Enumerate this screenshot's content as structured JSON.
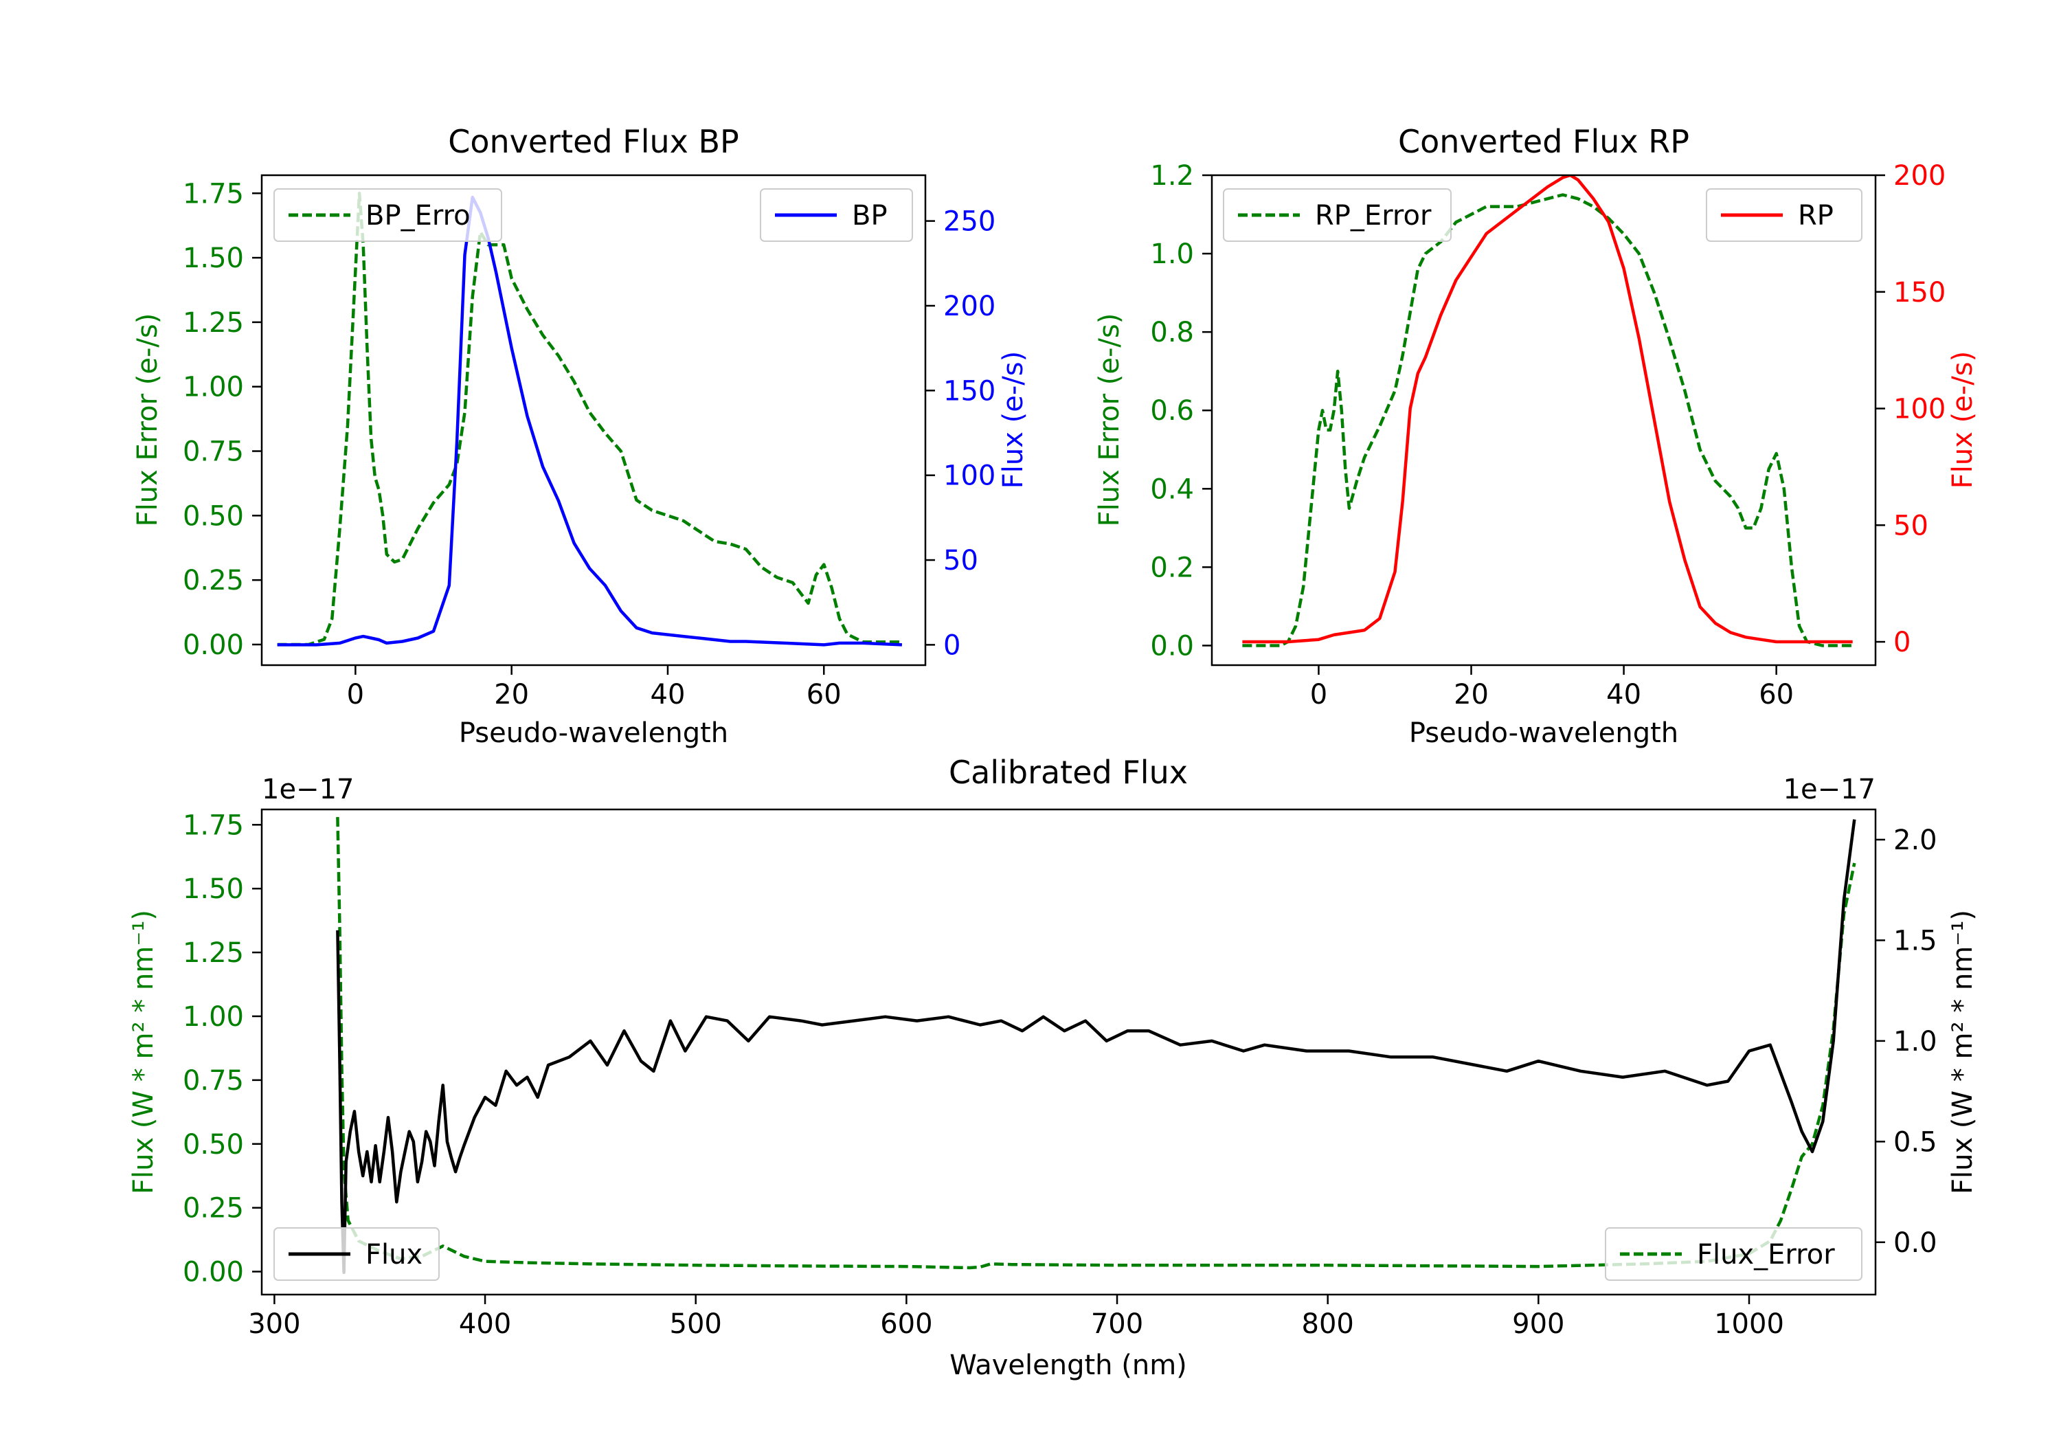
{
  "colors": {
    "green": "#007f00",
    "blue": "#0000ff",
    "red": "#ff0000",
    "black": "#000000",
    "axis": "#000000"
  },
  "chart_data": [
    {
      "id": "bp",
      "type": "line",
      "title": "Converted Flux BP",
      "xlabel": "Pseudo-wavelength",
      "ylabel": "Flux Error (e-/s)",
      "ylabel2": "Flux (e-/s)",
      "xlim": [
        -12,
        73
      ],
      "ylim": [
        -0.08,
        1.82
      ],
      "ylim2": [
        -12,
        277
      ],
      "xticks": [
        0,
        20,
        40,
        60
      ],
      "yticks": [
        0.0,
        0.25,
        0.5,
        0.75,
        1.0,
        1.25,
        1.5,
        1.75
      ],
      "ytick_labels": [
        "0.00",
        "0.25",
        "0.50",
        "0.75",
        "1.00",
        "1.25",
        "1.50",
        "1.75"
      ],
      "yticks2": [
        0,
        50,
        100,
        150,
        200,
        250
      ],
      "ytick_labels2": [
        "0",
        "50",
        "100",
        "150",
        "200",
        "250"
      ],
      "legend_left": "top-left",
      "legend_right": "top-right",
      "series": [
        {
          "name": "BP_Error",
          "legend_label": "BP_Erro",
          "axis": "left",
          "style": "dashed",
          "color": "#007f00",
          "x": [
            -10,
            -6,
            -4,
            -3,
            -2,
            -1,
            0,
            0.5,
            1,
            1.5,
            2,
            2.5,
            3,
            3.5,
            4,
            5,
            6,
            8,
            10,
            12,
            13,
            14,
            15,
            16,
            17,
            18,
            19,
            20,
            22,
            24,
            26,
            28,
            30,
            32,
            34,
            36,
            38,
            40,
            42,
            44,
            46,
            48,
            50,
            52,
            54,
            56,
            58,
            59,
            60,
            61,
            62,
            63,
            65,
            70
          ],
          "y": [
            0,
            0,
            0.02,
            0.1,
            0.45,
            0.85,
            1.45,
            1.75,
            1.55,
            1.15,
            0.8,
            0.65,
            0.6,
            0.5,
            0.35,
            0.32,
            0.33,
            0.45,
            0.55,
            0.62,
            0.7,
            0.9,
            1.35,
            1.6,
            1.55,
            1.55,
            1.55,
            1.42,
            1.3,
            1.2,
            1.12,
            1.02,
            0.9,
            0.82,
            0.75,
            0.56,
            0.52,
            0.5,
            0.48,
            0.44,
            0.4,
            0.39,
            0.37,
            0.3,
            0.26,
            0.24,
            0.16,
            0.27,
            0.31,
            0.22,
            0.1,
            0.04,
            0.01,
            0.01
          ]
        },
        {
          "name": "BP",
          "legend_label": "BP",
          "axis": "right",
          "style": "solid",
          "color": "#0000ff",
          "x": [
            -10,
            -5,
            -2,
            0,
            1,
            2,
            3,
            4,
            6,
            8,
            10,
            12,
            13,
            14,
            15,
            16,
            17,
            18,
            20,
            22,
            24,
            26,
            28,
            30,
            32,
            34,
            36,
            38,
            40,
            42,
            44,
            46,
            48,
            50,
            55,
            60,
            62,
            65,
            70
          ],
          "y": [
            0,
            0,
            1,
            4,
            5,
            4,
            3,
            1,
            2,
            4,
            8,
            35,
            120,
            230,
            264,
            255,
            240,
            220,
            175,
            135,
            105,
            85,
            60,
            45,
            35,
            20,
            10,
            7,
            6,
            5,
            4,
            3,
            2,
            2,
            1,
            0,
            1,
            1,
            0
          ]
        }
      ]
    },
    {
      "id": "rp",
      "type": "line",
      "title": "Converted Flux RP",
      "xlabel": "Pseudo-wavelength",
      "ylabel": "Flux Error (e-/s)",
      "ylabel2": "Flux (e-/s)",
      "xlim": [
        -14,
        73
      ],
      "ylim": [
        -0.05,
        1.2
      ],
      "ylim2": [
        -10,
        200
      ],
      "xticks": [
        0,
        20,
        40,
        60
      ],
      "yticks": [
        0.0,
        0.2,
        0.4,
        0.6,
        0.8,
        1.0,
        1.2
      ],
      "ytick_labels": [
        "0.0",
        "0.2",
        "0.4",
        "0.6",
        "0.8",
        "1.0",
        "1.2"
      ],
      "yticks2": [
        0,
        50,
        100,
        150,
        200
      ],
      "ytick_labels2": [
        "0",
        "50",
        "100",
        "150",
        "200"
      ],
      "legend_left": "top-left",
      "legend_right": "top-right",
      "series": [
        {
          "name": "RP_Error",
          "legend_label": "RP_Error",
          "axis": "left",
          "style": "dashed",
          "color": "#007f00",
          "x": [
            -10,
            -5,
            -4,
            -3,
            -2,
            -1,
            0,
            0.5,
            1,
            1.5,
            2,
            2.5,
            3,
            3.5,
            4,
            5,
            6,
            8,
            10,
            11,
            12,
            13,
            14,
            16,
            18,
            20,
            22,
            24,
            26,
            28,
            30,
            32,
            34,
            36,
            38,
            40,
            42,
            44,
            46,
            48,
            50,
            52,
            54,
            55,
            56,
            57,
            58,
            59,
            60,
            61,
            62,
            63,
            64,
            66,
            70
          ],
          "y": [
            0,
            0,
            0.01,
            0.05,
            0.15,
            0.35,
            0.55,
            0.6,
            0.55,
            0.55,
            0.6,
            0.7,
            0.6,
            0.45,
            0.35,
            0.42,
            0.48,
            0.56,
            0.65,
            0.74,
            0.85,
            0.96,
            1.0,
            1.03,
            1.08,
            1.1,
            1.12,
            1.12,
            1.12,
            1.13,
            1.14,
            1.15,
            1.14,
            1.12,
            1.09,
            1.05,
            1.0,
            0.9,
            0.78,
            0.65,
            0.5,
            0.42,
            0.38,
            0.35,
            0.3,
            0.3,
            0.35,
            0.45,
            0.49,
            0.4,
            0.2,
            0.05,
            0.01,
            0,
            0
          ]
        },
        {
          "name": "RP",
          "legend_label": "RP",
          "axis": "right",
          "style": "solid",
          "color": "#ff0000",
          "x": [
            -10,
            -4,
            0,
            2,
            4,
            6,
            8,
            10,
            11,
            12,
            13,
            14,
            16,
            18,
            20,
            22,
            24,
            26,
            28,
            30,
            32,
            33,
            34,
            36,
            38,
            40,
            42,
            44,
            46,
            48,
            50,
            52,
            54,
            56,
            58,
            60,
            65,
            70
          ],
          "y": [
            0,
            0,
            1,
            3,
            4,
            5,
            10,
            30,
            60,
            100,
            115,
            122,
            140,
            155,
            165,
            175,
            180,
            185,
            190,
            195,
            199,
            200,
            198,
            190,
            180,
            160,
            130,
            95,
            60,
            35,
            15,
            8,
            4,
            2,
            1,
            0,
            0,
            0
          ]
        }
      ]
    },
    {
      "id": "cal",
      "type": "line",
      "title": "Calibrated Flux",
      "xlabel": "Wavelength (nm)",
      "ylabel": "Flux (W * m² * nm⁻¹)",
      "ylabel2": "Flux (W * m² * nm⁻¹)",
      "offset_left": "1e−17",
      "offset_right": "1e−17",
      "xlim": [
        294,
        1060
      ],
      "ylim": [
        -0.09,
        1.81
      ],
      "ylim2": [
        -0.26,
        2.15
      ],
      "xticks": [
        300,
        400,
        500,
        600,
        700,
        800,
        900,
        1000
      ],
      "yticks": [
        0.0,
        0.25,
        0.5,
        0.75,
        1.0,
        1.25,
        1.5,
        1.75
      ],
      "ytick_labels": [
        "0.00",
        "0.25",
        "0.50",
        "0.75",
        "1.00",
        "1.25",
        "1.50",
        "1.75"
      ],
      "yticks2": [
        0.0,
        0.5,
        1.0,
        1.5,
        2.0
      ],
      "ytick_labels2": [
        "0.0",
        "0.5",
        "1.0",
        "1.5",
        "2.0"
      ],
      "legend_left": "bottom-left",
      "legend_right": "bottom-right",
      "series": [
        {
          "name": "Flux_Error",
          "legend_label": "Flux_Error",
          "axis": "left",
          "style": "dashed",
          "color": "#007f00",
          "x": [
            330,
            331,
            332,
            333,
            335,
            340,
            350,
            360,
            370,
            380,
            385,
            390,
            395,
            400,
            420,
            450,
            500,
            550,
            600,
            630,
            635,
            640,
            650,
            700,
            800,
            900,
            950,
            980,
            1000,
            1010,
            1015,
            1020,
            1025,
            1030,
            1035,
            1040,
            1045,
            1050
          ],
          "y": [
            1.78,
            1.35,
            0.8,
            0.4,
            0.2,
            0.12,
            0.08,
            0.05,
            0.06,
            0.1,
            0.08,
            0.06,
            0.05,
            0.04,
            0.035,
            0.03,
            0.025,
            0.022,
            0.02,
            0.015,
            0.018,
            0.03,
            0.028,
            0.025,
            0.025,
            0.02,
            0.03,
            0.04,
            0.07,
            0.12,
            0.2,
            0.32,
            0.45,
            0.5,
            0.65,
            0.95,
            1.4,
            1.6
          ]
        },
        {
          "name": "Flux",
          "legend_label": "Flux",
          "axis": "right",
          "style": "solid",
          "color": "#000000",
          "x": [
            330,
            331,
            332,
            333,
            334,
            336,
            338,
            340,
            342,
            344,
            346,
            348,
            350,
            352,
            354,
            356,
            358,
            360,
            362,
            364,
            366,
            368,
            370,
            372,
            374,
            376,
            378,
            380,
            382,
            384,
            386,
            388,
            390,
            395,
            400,
            405,
            410,
            415,
            420,
            425,
            430,
            440,
            450,
            458,
            466,
            474,
            480,
            488,
            495,
            505,
            515,
            525,
            535,
            550,
            560,
            575,
            590,
            605,
            620,
            635,
            645,
            655,
            665,
            675,
            685,
            695,
            705,
            715,
            730,
            745,
            760,
            770,
            790,
            810,
            830,
            850,
            870,
            885,
            900,
            920,
            940,
            960,
            980,
            990,
            1000,
            1010,
            1020,
            1025,
            1030,
            1035,
            1040,
            1045,
            1050
          ],
          "y": [
            1.55,
            0.9,
            0.2,
            -0.15,
            0.4,
            0.55,
            0.65,
            0.45,
            0.33,
            0.45,
            0.3,
            0.48,
            0.3,
            0.45,
            0.62,
            0.45,
            0.2,
            0.35,
            0.45,
            0.55,
            0.5,
            0.3,
            0.4,
            0.55,
            0.5,
            0.38,
            0.6,
            0.78,
            0.5,
            0.42,
            0.35,
            0.42,
            0.48,
            0.62,
            0.72,
            0.68,
            0.85,
            0.78,
            0.82,
            0.72,
            0.88,
            0.92,
            1.0,
            0.88,
            1.05,
            0.9,
            0.85,
            1.1,
            0.95,
            1.12,
            1.1,
            1.0,
            1.12,
            1.1,
            1.08,
            1.1,
            1.12,
            1.1,
            1.12,
            1.08,
            1.1,
            1.05,
            1.12,
            1.05,
            1.1,
            1.0,
            1.05,
            1.05,
            0.98,
            1.0,
            0.95,
            0.98,
            0.95,
            0.95,
            0.92,
            0.92,
            0.88,
            0.85,
            0.9,
            0.85,
            0.82,
            0.85,
            0.78,
            0.8,
            0.95,
            0.98,
            0.7,
            0.55,
            0.45,
            0.6,
            1.0,
            1.7,
            2.1
          ]
        }
      ]
    }
  ]
}
